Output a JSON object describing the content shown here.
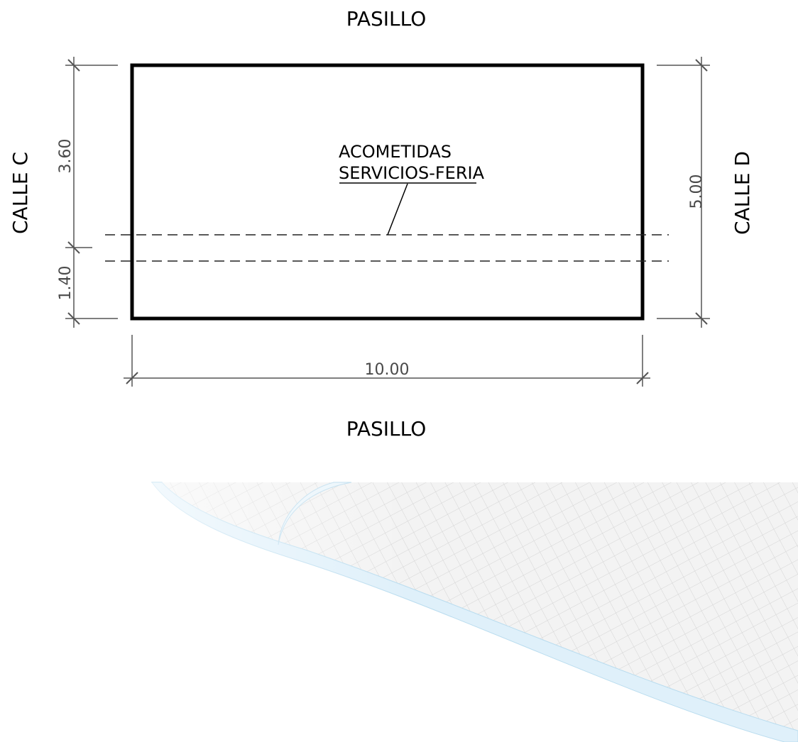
{
  "labels": {
    "top": "PASILLO",
    "bottom": "PASILLO",
    "left": "CALLE C",
    "right": "CALLE D"
  },
  "dimensions": {
    "upper_left": "3.60",
    "lower_left": "1.40",
    "right": "5.00",
    "bottom": "10.00"
  },
  "annotation": {
    "line1": "ACOMETIDAS",
    "line2": "SERVICIOS-FERIA"
  },
  "colors": {
    "plot_outline": "#000000",
    "dimension_line": "#555555",
    "dashed_line": "#222222",
    "sheet": "#f2f2f2",
    "sheet_edge": "#cfe8f5"
  }
}
